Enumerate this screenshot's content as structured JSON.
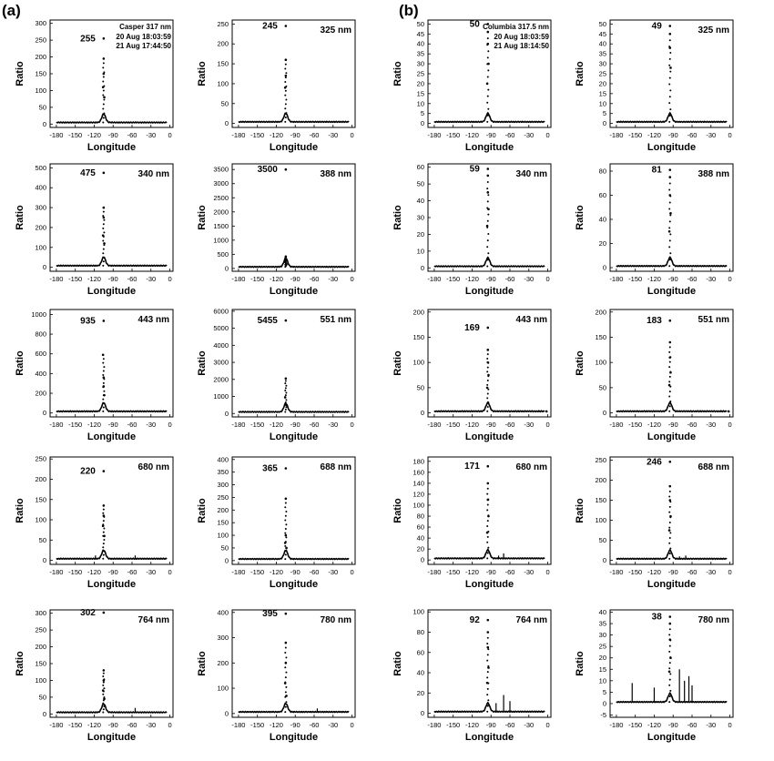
{
  "panel_labels": [
    "(a)",
    "(b)"
  ],
  "chart_data": [
    {
      "group": "(a)",
      "type": "scatter",
      "xlabel": "Longitude",
      "ylabel": "Ratio",
      "xticks": [
        -180,
        -150,
        -120,
        -90,
        -60,
        -30,
        0
      ],
      "yticks": [
        0,
        50,
        100,
        150,
        200,
        250,
        300
      ],
      "ylim": [
        -10,
        310
      ],
      "peak_label": "255",
      "wavelength_label": "Casper 317 nm",
      "info_lines": [
        "20 Aug 18:03:59",
        "21 Aug 17:44:50"
      ],
      "peak": {
        "x": -105,
        "y": 255
      },
      "series": [
        {
          "x": -105,
          "y": 195
        },
        {
          "x": -105,
          "y": 150
        },
        {
          "x": -106,
          "y": 110
        },
        {
          "x": -104,
          "y": 80
        }
      ],
      "noise": []
    },
    {
      "group": "(a)",
      "type": "scatter",
      "xlabel": "Longitude",
      "ylabel": "Ratio",
      "xticks": [
        -180,
        -150,
        -120,
        -90,
        -60,
        -30,
        0
      ],
      "yticks": [
        0,
        50,
        100,
        150,
        200,
        250
      ],
      "ylim": [
        -10,
        260
      ],
      "peak_label": "245",
      "wavelength_label": "325 nm",
      "info_lines": [],
      "peak": {
        "x": -105,
        "y": 245
      },
      "series": [
        {
          "x": -105,
          "y": 160
        },
        {
          "x": -105,
          "y": 120
        },
        {
          "x": -106,
          "y": 90
        }
      ],
      "noise": []
    },
    {
      "group": "(b)",
      "type": "scatter",
      "xlabel": "Longitude",
      "ylabel": "Ratio",
      "xticks": [
        -180,
        -150,
        -120,
        -90,
        -60,
        -30,
        0
      ],
      "yticks": [
        0,
        5,
        10,
        15,
        20,
        25,
        30,
        35,
        40,
        45,
        50
      ],
      "ylim": [
        -2,
        52
      ],
      "peak_label": "50",
      "wavelength_label": "Columbia 317.5 nm",
      "info_lines": [
        "20 Aug 18:03:59",
        "21 Aug 18:14:50"
      ],
      "peak": {
        "x": -95,
        "y": 50
      },
      "series": [
        {
          "x": -95,
          "y": 46
        },
        {
          "x": -95,
          "y": 40
        },
        {
          "x": -94,
          "y": 30
        },
        {
          "x": -96,
          "y": 20
        }
      ],
      "noise": []
    },
    {
      "group": "(b)",
      "type": "scatter",
      "xlabel": "Longitude",
      "ylabel": "Ratio",
      "xticks": [
        -180,
        -150,
        -120,
        -90,
        -60,
        -30,
        0
      ],
      "yticks": [
        0,
        5,
        10,
        15,
        20,
        25,
        30,
        35,
        40,
        45,
        50
      ],
      "ylim": [
        -2,
        52
      ],
      "peak_label": "49",
      "wavelength_label": "325 nm",
      "info_lines": [],
      "peak": {
        "x": -95,
        "y": 49
      },
      "series": [
        {
          "x": -95,
          "y": 45
        },
        {
          "x": -95,
          "y": 38
        },
        {
          "x": -94,
          "y": 28
        }
      ],
      "noise": []
    },
    {
      "group": "(a)",
      "type": "scatter",
      "xlabel": "Longitude",
      "ylabel": "Ratio",
      "xticks": [
        -180,
        -150,
        -120,
        -90,
        -60,
        -30,
        0
      ],
      "yticks": [
        0,
        100,
        200,
        300,
        400,
        500
      ],
      "ylim": [
        -20,
        520
      ],
      "peak_label": "475",
      "wavelength_label": "340 nm",
      "info_lines": [],
      "peak": {
        "x": -105,
        "y": 475
      },
      "series": [
        {
          "x": -105,
          "y": 300
        },
        {
          "x": -105,
          "y": 250
        },
        {
          "x": -106,
          "y": 160
        },
        {
          "x": -104,
          "y": 120
        }
      ],
      "noise": []
    },
    {
      "group": "(a)",
      "type": "scatter",
      "xlabel": "Longitude",
      "ylabel": "Ratio",
      "xticks": [
        -180,
        -150,
        -120,
        -90,
        -60,
        -30,
        0
      ],
      "yticks": [
        0,
        500,
        1000,
        1500,
        2000,
        2500,
        3000,
        3500
      ],
      "ylim": [
        -100,
        3700
      ],
      "peak_label": "3500",
      "wavelength_label": "388 nm",
      "info_lines": [],
      "peak": {
        "x": -105,
        "y": 3500
      },
      "series": [
        {
          "x": -105,
          "y": 420
        },
        {
          "x": -106,
          "y": 250
        },
        {
          "x": -104,
          "y": 150
        }
      ],
      "noise": []
    },
    {
      "group": "(b)",
      "type": "scatter",
      "xlabel": "Longitude",
      "ylabel": "Ratio",
      "xticks": [
        -180,
        -150,
        -120,
        -90,
        -60,
        -30,
        0
      ],
      "yticks": [
        0,
        10,
        20,
        30,
        40,
        50,
        60
      ],
      "ylim": [
        -2,
        62
      ],
      "peak_label": "59",
      "wavelength_label": "340 nm",
      "info_lines": [],
      "peak": {
        "x": -95,
        "y": 59
      },
      "series": [
        {
          "x": -95,
          "y": 55
        },
        {
          "x": -95,
          "y": 45
        },
        {
          "x": -94,
          "y": 35
        },
        {
          "x": -96,
          "y": 25
        }
      ],
      "noise": []
    },
    {
      "group": "(b)",
      "type": "scatter",
      "xlabel": "Longitude",
      "ylabel": "Ratio",
      "xticks": [
        -180,
        -150,
        -120,
        -90,
        -60,
        -30,
        0
      ],
      "yticks": [
        0,
        20,
        40,
        60,
        80
      ],
      "ylim": [
        -3,
        86
      ],
      "peak_label": "81",
      "wavelength_label": "388 nm",
      "info_lines": [],
      "peak": {
        "x": -95,
        "y": 81
      },
      "series": [
        {
          "x": -95,
          "y": 75
        },
        {
          "x": -95,
          "y": 60
        },
        {
          "x": -94,
          "y": 45
        },
        {
          "x": -96,
          "y": 30
        }
      ],
      "noise": []
    },
    {
      "group": "(a)",
      "type": "scatter",
      "xlabel": "Longitude",
      "ylabel": "Ratio",
      "xticks": [
        -180,
        -150,
        -120,
        -90,
        -60,
        -30,
        0
      ],
      "yticks": [
        0,
        200,
        400,
        600,
        800,
        1000
      ],
      "ylim": [
        -40,
        1050
      ],
      "peak_label": "935",
      "wavelength_label": "443 nm",
      "info_lines": [],
      "peak": {
        "x": -105,
        "y": 935
      },
      "series": [
        {
          "x": -106,
          "y": 590
        },
        {
          "x": -105,
          "y": 360
        },
        {
          "x": -105,
          "y": 270
        },
        {
          "x": -104,
          "y": 180
        }
      ],
      "noise": []
    },
    {
      "group": "(a)",
      "type": "scatter",
      "xlabel": "Longitude",
      "ylabel": "Ratio",
      "xticks": [
        -180,
        -150,
        -120,
        -90,
        -60,
        -30,
        0
      ],
      "yticks": [
        0,
        1000,
        2000,
        3000,
        4000,
        5000,
        6000
      ],
      "ylim": [
        -200,
        6100
      ],
      "peak_label": "5455",
      "wavelength_label": "551 nm",
      "info_lines": [],
      "peak": {
        "x": -105,
        "y": 5455
      },
      "series": [
        {
          "x": -105,
          "y": 2050
        },
        {
          "x": -106,
          "y": 950
        },
        {
          "x": -104,
          "y": 500
        }
      ],
      "noise": []
    },
    {
      "group": "(b)",
      "type": "scatter",
      "xlabel": "Longitude",
      "ylabel": "Ratio",
      "xticks": [
        -180,
        -150,
        -120,
        -90,
        -60,
        -30,
        0
      ],
      "yticks": [
        0,
        50,
        100,
        150,
        200
      ],
      "ylim": [
        -8,
        205
      ],
      "peak_label": "169",
      "wavelength_label": "443 nm",
      "info_lines": [],
      "peak": {
        "x": -95,
        "y": 169
      },
      "series": [
        {
          "x": -95,
          "y": 125
        },
        {
          "x": -95,
          "y": 100
        },
        {
          "x": -94,
          "y": 75
        },
        {
          "x": -96,
          "y": 50
        },
        {
          "x": -2,
          "y": 3
        }
      ],
      "noise": []
    },
    {
      "group": "(b)",
      "type": "scatter",
      "xlabel": "Longitude",
      "ylabel": "Ratio",
      "xticks": [
        -180,
        -150,
        -120,
        -90,
        -60,
        -30,
        0
      ],
      "yticks": [
        0,
        50,
        100,
        150,
        200
      ],
      "ylim": [
        -8,
        205
      ],
      "peak_label": "183",
      "wavelength_label": "551 nm",
      "info_lines": [],
      "peak": {
        "x": -95,
        "y": 183
      },
      "series": [
        {
          "x": -95,
          "y": 140
        },
        {
          "x": -95,
          "y": 110
        },
        {
          "x": -94,
          "y": 80
        },
        {
          "x": -96,
          "y": 55
        },
        {
          "x": -2,
          "y": 3
        }
      ],
      "noise": []
    },
    {
      "group": "(a)",
      "type": "scatter",
      "xlabel": "Longitude",
      "ylabel": "Ratio",
      "xticks": [
        -180,
        -150,
        -120,
        -90,
        -60,
        -30,
        0
      ],
      "yticks": [
        0,
        50,
        100,
        150,
        200,
        250
      ],
      "ylim": [
        -10,
        255
      ],
      "peak_label": "220",
      "wavelength_label": "680 nm",
      "info_lines": [],
      "peak": {
        "x": -105,
        "y": 220
      },
      "series": [
        {
          "x": -105,
          "y": 135
        },
        {
          "x": -105,
          "y": 110
        },
        {
          "x": -106,
          "y": 85
        },
        {
          "x": -104,
          "y": 60
        }
      ],
      "noise": [
        {
          "x": -118,
          "y": 12
        },
        {
          "x": -55,
          "y": 12
        }
      ]
    },
    {
      "group": "(a)",
      "type": "scatter",
      "xlabel": "Longitude",
      "ylabel": "Ratio",
      "xticks": [
        -180,
        -150,
        -120,
        -90,
        -60,
        -30,
        0
      ],
      "yticks": [
        0,
        50,
        100,
        150,
        200,
        250,
        300,
        350,
        400
      ],
      "ylim": [
        -15,
        410
      ],
      "peak_label": "365",
      "wavelength_label": "688 nm",
      "info_lines": [],
      "peak": {
        "x": -105,
        "y": 365
      },
      "series": [
        {
          "x": -105,
          "y": 245
        },
        {
          "x": -105,
          "y": 100
        },
        {
          "x": -106,
          "y": 70
        },
        {
          "x": -104,
          "y": 50
        }
      ],
      "noise": [
        {
          "x": -58,
          "y": 10
        }
      ]
    },
    {
      "group": "(b)",
      "type": "scatter",
      "xlabel": "Longitude",
      "ylabel": "Ratio",
      "xticks": [
        -180,
        -150,
        -120,
        -90,
        -60,
        -30,
        0
      ],
      "yticks": [
        0,
        20,
        40,
        60,
        80,
        100,
        120,
        140,
        160,
        180
      ],
      "ylim": [
        -8,
        188
      ],
      "peak_label": "171",
      "wavelength_label": "680 nm",
      "info_lines": [],
      "peak": {
        "x": -95,
        "y": 171
      },
      "series": [
        {
          "x": -95,
          "y": 140
        },
        {
          "x": -95,
          "y": 110
        },
        {
          "x": -94,
          "y": 80
        },
        {
          "x": -96,
          "y": 50
        }
      ],
      "noise": [
        {
          "x": -78,
          "y": 8
        },
        {
          "x": -70,
          "y": 12
        }
      ]
    },
    {
      "group": "(b)",
      "type": "scatter",
      "xlabel": "Longitude",
      "ylabel": "Ratio",
      "xticks": [
        -180,
        -150,
        -120,
        -90,
        -60,
        -30,
        0
      ],
      "yticks": [
        0,
        50,
        100,
        150,
        200,
        250
      ],
      "ylim": [
        -10,
        258
      ],
      "peak_label": "246",
      "wavelength_label": "688 nm",
      "info_lines": [],
      "peak": {
        "x": -95,
        "y": 246
      },
      "series": [
        {
          "x": -95,
          "y": 185
        },
        {
          "x": -95,
          "y": 150
        },
        {
          "x": -94,
          "y": 110
        },
        {
          "x": -96,
          "y": 75
        }
      ],
      "noise": [
        {
          "x": -80,
          "y": 10
        },
        {
          "x": -70,
          "y": 12
        }
      ]
    },
    {
      "group": "(a)",
      "type": "scatter",
      "xlabel": "Longitude",
      "ylabel": "Ratio",
      "xticks": [
        -180,
        -150,
        -120,
        -90,
        -60,
        -30,
        0
      ],
      "yticks": [
        0,
        50,
        100,
        150,
        200,
        250,
        300
      ],
      "ylim": [
        -10,
        310
      ],
      "peak_label": "302",
      "wavelength_label": "764 nm",
      "info_lines": [],
      "peak": {
        "x": -105,
        "y": 302
      },
      "series": [
        {
          "x": -105,
          "y": 130
        },
        {
          "x": -105,
          "y": 100
        },
        {
          "x": -106,
          "y": 70
        },
        {
          "x": -104,
          "y": 45
        }
      ],
      "noise": [
        {
          "x": -55,
          "y": 18
        },
        {
          "x": -80,
          "y": 8
        }
      ]
    },
    {
      "group": "(a)",
      "type": "scatter",
      "xlabel": "Longitude",
      "ylabel": "Ratio",
      "xticks": [
        -180,
        -150,
        -120,
        -90,
        -60,
        -30,
        0
      ],
      "yticks": [
        0,
        100,
        200,
        300,
        400
      ],
      "ylim": [
        -15,
        410
      ],
      "peak_label": "395",
      "wavelength_label": "780 nm",
      "info_lines": [],
      "peak": {
        "x": -105,
        "y": 395
      },
      "series": [
        {
          "x": -105,
          "y": 280
        },
        {
          "x": -105,
          "y": 200
        },
        {
          "x": -106,
          "y": 120
        },
        {
          "x": -104,
          "y": 70
        }
      ],
      "noise": [
        {
          "x": -55,
          "y": 20
        },
        {
          "x": -80,
          "y": 10
        }
      ]
    },
    {
      "group": "(b)",
      "type": "scatter",
      "xlabel": "Longitude",
      "ylabel": "Ratio",
      "xticks": [
        -180,
        -150,
        -120,
        -90,
        -60,
        -30,
        0
      ],
      "yticks": [
        0,
        20,
        40,
        60,
        80,
        100
      ],
      "ylim": [
        -4,
        102
      ],
      "peak_label": "92",
      "wavelength_label": "764 nm",
      "info_lines": [],
      "peak": {
        "x": -95,
        "y": 92
      },
      "series": [
        {
          "x": -95,
          "y": 80
        },
        {
          "x": -95,
          "y": 65
        },
        {
          "x": -94,
          "y": 45
        },
        {
          "x": -96,
          "y": 30
        }
      ],
      "noise": [
        {
          "x": -70,
          "y": 18
        },
        {
          "x": -60,
          "y": 12
        },
        {
          "x": -82,
          "y": 10
        }
      ]
    },
    {
      "group": "(b)",
      "type": "scatter",
      "xlabel": "Longitude",
      "ylabel": "Ratio",
      "xticks": [
        -180,
        -150,
        -120,
        -90,
        -60,
        -30,
        0
      ],
      "yticks": [
        -5,
        0,
        5,
        10,
        15,
        20,
        25,
        30,
        35,
        40
      ],
      "ylim": [
        -6,
        41
      ],
      "peak_label": "38",
      "wavelength_label": "780 nm",
      "info_lines": [],
      "peak": {
        "x": -95,
        "y": 38
      },
      "series": [
        {
          "x": -95,
          "y": 35
        },
        {
          "x": -95,
          "y": 28
        },
        {
          "x": -94,
          "y": 20
        },
        {
          "x": -96,
          "y": 14
        }
      ],
      "noise": [
        {
          "x": -155,
          "y": 9
        },
        {
          "x": -120,
          "y": 7
        },
        {
          "x": -80,
          "y": 15
        },
        {
          "x": -72,
          "y": 10
        },
        {
          "x": -65,
          "y": 12
        },
        {
          "x": -60,
          "y": 8
        }
      ]
    }
  ]
}
